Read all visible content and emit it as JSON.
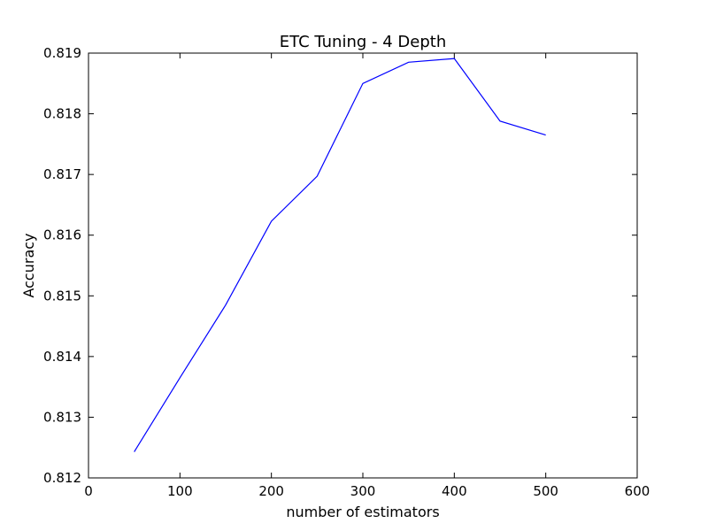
{
  "chart_data": {
    "type": "line",
    "title": "ETC Tuning - 4 Depth",
    "xlabel": "number of estimators",
    "ylabel": "Accuracy",
    "xlim": [
      0,
      600
    ],
    "ylim": [
      0.812,
      0.819
    ],
    "xticks": [
      0,
      100,
      200,
      300,
      400,
      500,
      600
    ],
    "yticks": [
      0.812,
      0.813,
      0.814,
      0.815,
      0.816,
      0.817,
      0.818,
      0.819
    ],
    "xtick_labels": [
      "0",
      "100",
      "200",
      "300",
      "400",
      "500",
      "600"
    ],
    "ytick_labels": [
      "0.812",
      "0.813",
      "0.814",
      "0.815",
      "0.816",
      "0.817",
      "0.818",
      "0.819"
    ],
    "grid": false,
    "legend": false,
    "series": [
      {
        "color": "#0000ff",
        "x": [
          50,
          100,
          150,
          200,
          250,
          300,
          350,
          400,
          450,
          500
        ],
        "y": [
          0.81243,
          0.81365,
          0.81485,
          0.81623,
          0.81697,
          0.8185,
          0.81885,
          0.81891,
          0.81788,
          0.81765
        ]
      }
    ]
  }
}
